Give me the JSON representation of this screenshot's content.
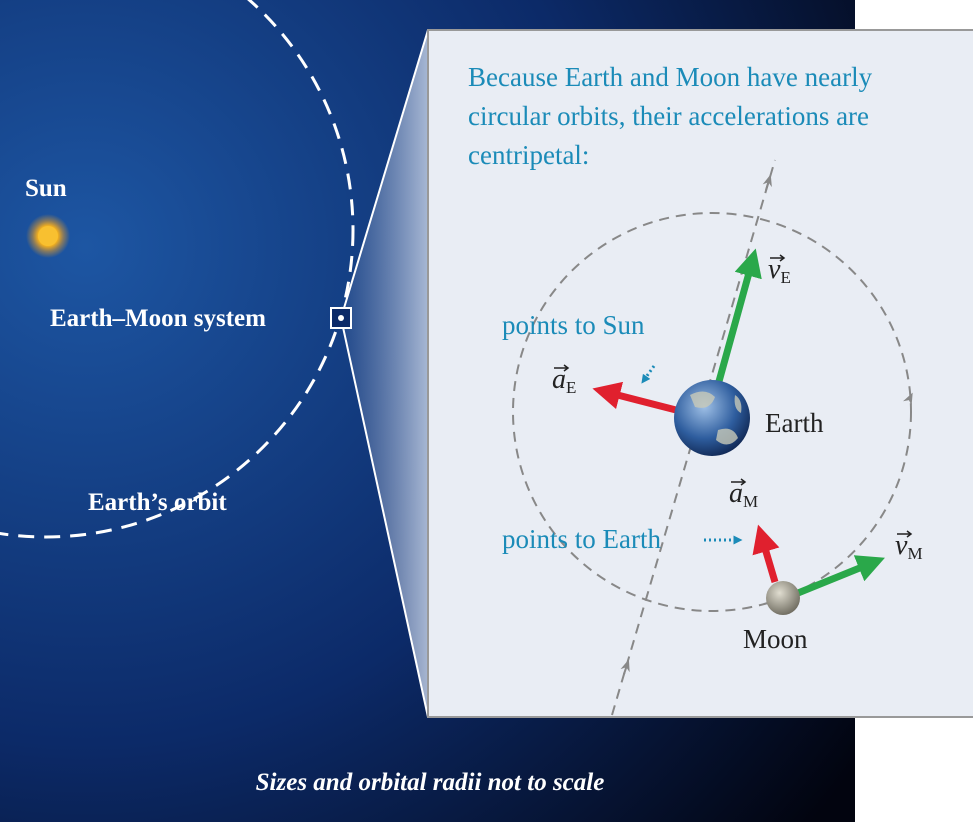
{
  "sun_label": "Sun",
  "system_label": "Earth–Moon system",
  "orbit_label": "Earth’s orbit",
  "inset": {
    "note_lines": [
      "Because Earth and Moon have nearly",
      "circular orbits, their accelerations are",
      "centripetal:"
    ],
    "sun_pointer": "points to Sun",
    "earth_pointer": "points to Earth",
    "earth_label": "Earth",
    "moon_label": "Moon",
    "vectors": [
      {
        "symbol": "v",
        "sub": "E"
      },
      {
        "symbol": "a",
        "sub": "E"
      },
      {
        "symbol": "a",
        "sub": "M"
      },
      {
        "symbol": "v",
        "sub": "M"
      }
    ]
  },
  "caption": "Sizes and orbital radii not to scale"
}
